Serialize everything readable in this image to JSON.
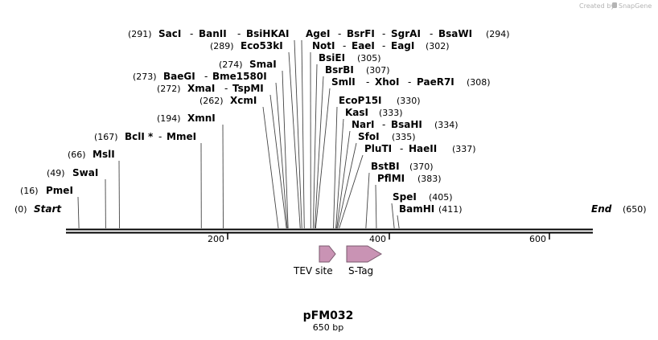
{
  "credit": {
    "prefix": "Created by",
    "brand": "SnapGene"
  },
  "plasmid": {
    "name": "pFM032",
    "length_label": "650 bp",
    "length_bp": 650
  },
  "ruler_ticks": [
    "200",
    "400",
    "600"
  ],
  "features": [
    {
      "name": "TEV site",
      "start_bp": 313,
      "end_bp": 335,
      "color": "#c993b4"
    },
    {
      "name": "S-Tag",
      "start_bp": 348,
      "end_bp": 392,
      "color": "#c993b4"
    }
  ],
  "sites": {
    "start": {
      "pos": "(0)",
      "name": "Start"
    },
    "end": {
      "name": "End",
      "pos": "(650)"
    },
    "pmei": {
      "pos": "(16)",
      "name": "PmeI"
    },
    "swai": {
      "pos": "(49)",
      "name": "SwaI"
    },
    "msli": {
      "pos": "(66)",
      "name": "MslI"
    },
    "bcli": {
      "pos": "(167)",
      "name": "BclI",
      "mark": "*"
    },
    "mmei": {
      "name": "MmeI"
    },
    "xmni": {
      "pos": "(194)",
      "name": "XmnI"
    },
    "xcmi": {
      "pos": "(262)",
      "name": "XcmI"
    },
    "xmai": {
      "pos": "(272)",
      "name": "XmaI"
    },
    "tspmi": {
      "name": "TspMI"
    },
    "baegi": {
      "pos": "(273)",
      "name": "BaeGI"
    },
    "bme1580i": {
      "name": "Bme1580I"
    },
    "smai": {
      "pos": "(274)",
      "name": "SmaI"
    },
    "eco53ki": {
      "pos": "(289)",
      "name": "Eco53kI"
    },
    "saci": {
      "pos": "(291)",
      "name": "SacI"
    },
    "banii": {
      "name": "BanII"
    },
    "bslhkai": {
      "name": "BsiHKAI"
    },
    "agei": {
      "name": "AgeI"
    },
    "bsrfi": {
      "name": "BsrFI"
    },
    "sgrai": {
      "name": "SgrAI"
    },
    "bsawi": {
      "name": "BsaWI",
      "pos": "(294)"
    },
    "noti": {
      "name": "NotI"
    },
    "eaei": {
      "name": "EaeI"
    },
    "eagi": {
      "name": "EagI",
      "pos": "(302)"
    },
    "bsiei": {
      "name": "BsiEI",
      "pos": "(305)"
    },
    "bsrbi": {
      "name": "BsrBI",
      "pos": "(307)"
    },
    "smli": {
      "name": "SmlI"
    },
    "xhoi": {
      "name": "XhoI"
    },
    "paer7i": {
      "name": "PaeR7I",
      "pos": "(308)"
    },
    "ecop15i": {
      "name": "EcoP15I",
      "pos": "(330)"
    },
    "kasi": {
      "name": "KasI",
      "pos": "(333)"
    },
    "nari": {
      "name": "NarI"
    },
    "bsahi": {
      "name": "BsaHI",
      "pos": "(334)"
    },
    "sfoi": {
      "name": "SfoI",
      "pos": "(335)"
    },
    "pluti": {
      "name": "PluTI"
    },
    "haeii": {
      "name": "HaeII",
      "pos": "(337)"
    },
    "bstbi": {
      "name": "BstBI",
      "pos": "(370)"
    },
    "pflmi": {
      "name": "PflMI",
      "pos": "(383)"
    },
    "spei": {
      "name": "SpeI",
      "pos": "(405)"
    },
    "bamhi": {
      "name": "BamHI",
      "pos": "(411)"
    }
  },
  "separator": "-"
}
